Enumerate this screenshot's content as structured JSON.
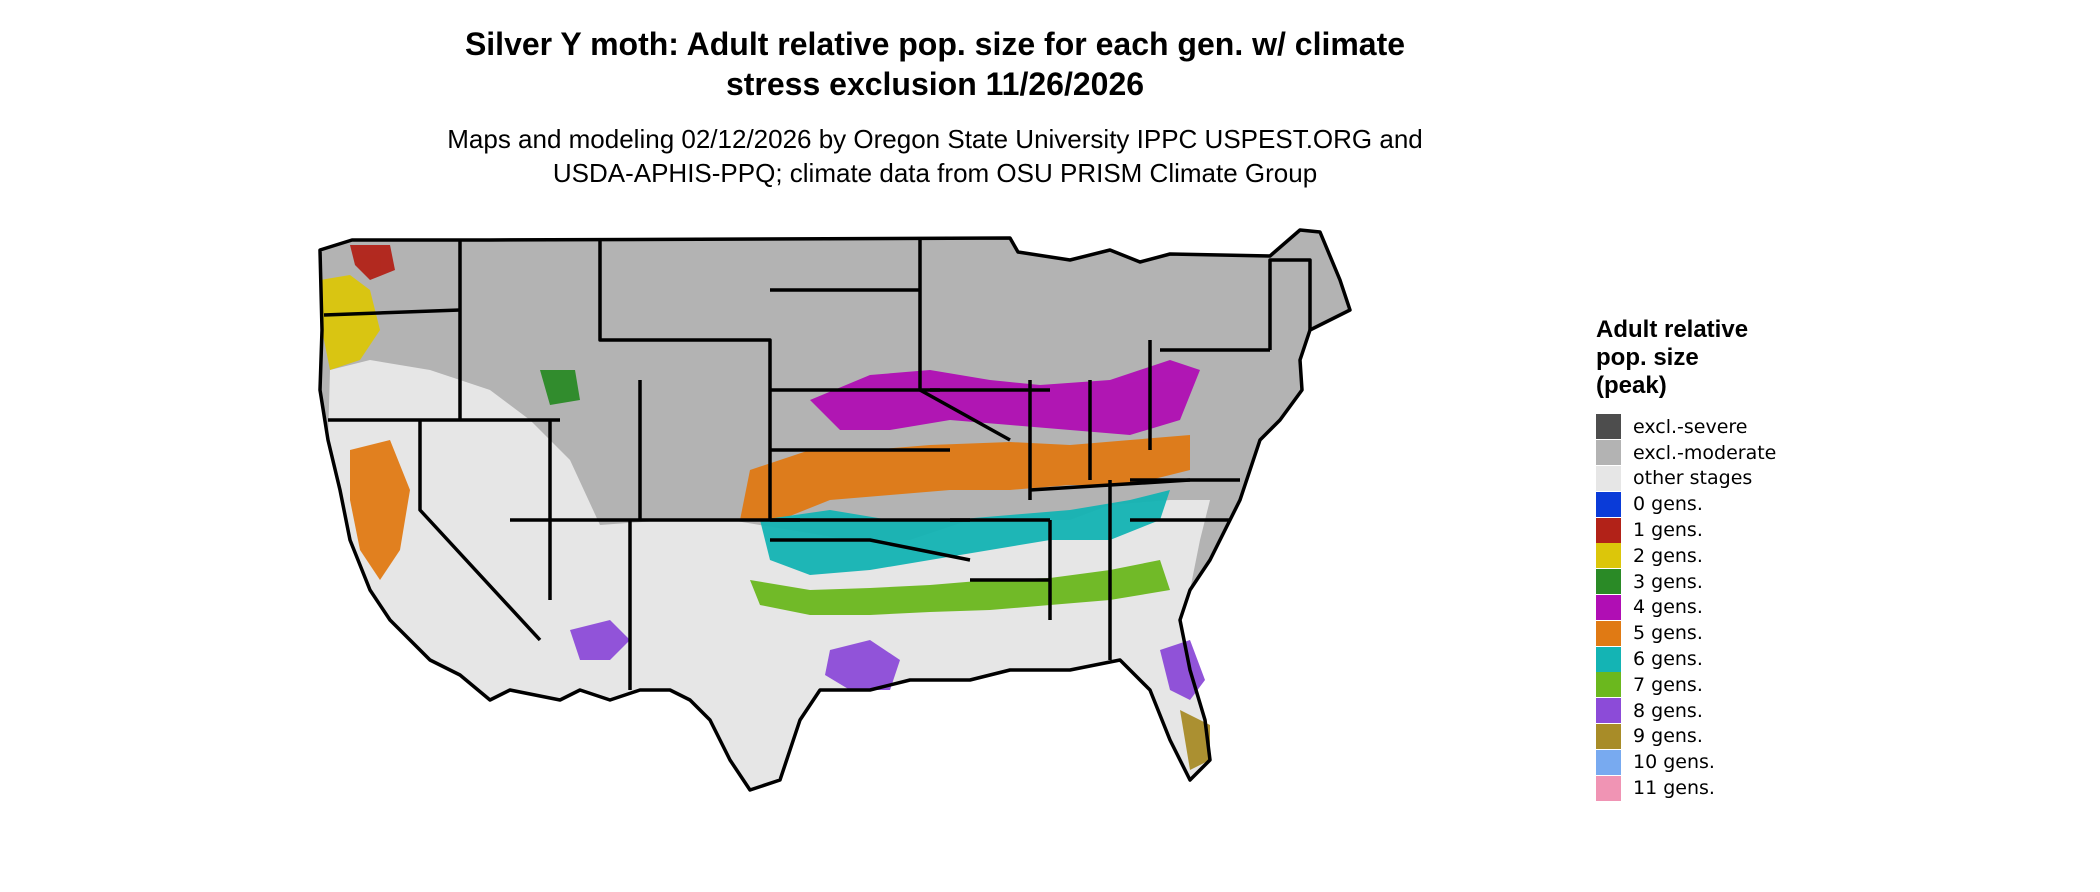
{
  "title_line1": "Silver Y moth: Adult relative pop. size for each gen. w/ climate",
  "title_line2": "stress exclusion 11/26/2026",
  "subtitle_line1": "Maps and modeling 02/12/2026 by Oregon State University IPPC USPEST.ORG and",
  "subtitle_line2": "USDA-APHIS-PPQ; climate data from OSU PRISM Climate Group",
  "legend": {
    "title_line1": "Adult relative",
    "title_line2": "pop. size",
    "title_line3": "(peak)",
    "items": [
      {
        "label": "excl.-severe",
        "color": "#4d4d4d"
      },
      {
        "label": "excl.-moderate",
        "color": "#b3b3b3"
      },
      {
        "label": "other stages",
        "color": "#e6e6e6"
      },
      {
        "label": "0 gens.",
        "color": "#0a3bd8"
      },
      {
        "label": "1 gens.",
        "color": "#b22218"
      },
      {
        "label": "2 gens.",
        "color": "#dcc60a"
      },
      {
        "label": "3 gens.",
        "color": "#2a8a26"
      },
      {
        "label": "4 gens.",
        "color": "#b00eb4"
      },
      {
        "label": "5 gens.",
        "color": "#e07a14"
      },
      {
        "label": "6 gens.",
        "color": "#14b4b4"
      },
      {
        "label": "7 gens.",
        "color": "#6bb81e"
      },
      {
        "label": "8 gens.",
        "color": "#8c4bd8"
      },
      {
        "label": "9 gens.",
        "color": "#a88c28"
      },
      {
        "label": "10 gens.",
        "color": "#78aaf0"
      },
      {
        "label": "11 gens.",
        "color": "#f094b4"
      }
    ]
  }
}
